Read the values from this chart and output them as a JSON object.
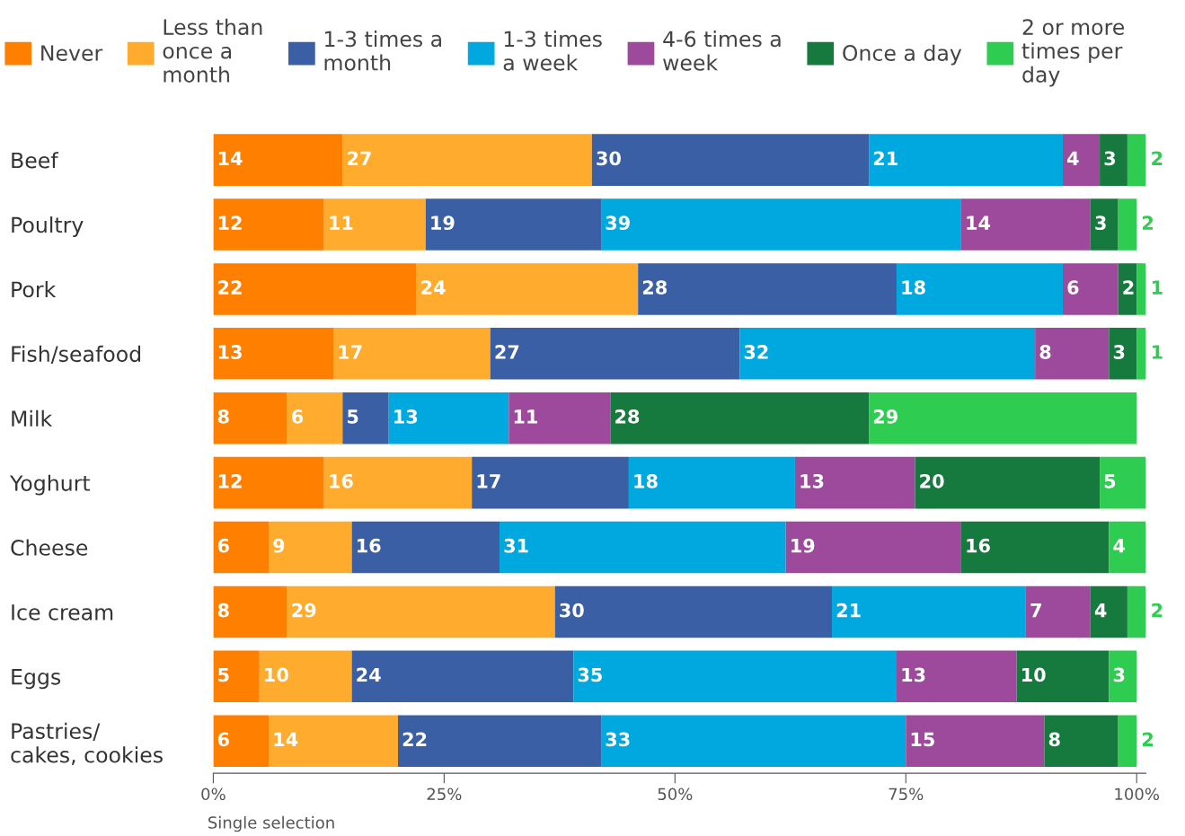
{
  "chart_data": {
    "type": "bar",
    "orientation": "horizontal",
    "stacked": true,
    "data_labels": true,
    "grid": false,
    "legend": "top",
    "categories": [
      "Beef",
      "Poultry",
      "Pork",
      "Fish/seafood",
      "Milk",
      "Yoghurt",
      "Cheese",
      "Ice cream",
      "Eggs",
      "Pastries/\ncakes, cookies"
    ],
    "series": [
      {
        "name": "Never",
        "color": "#ff8000",
        "values": [
          14,
          12,
          22,
          13,
          8,
          12,
          6,
          8,
          5,
          6
        ]
      },
      {
        "name": "Less than\nonce a\nmonth",
        "color": "#ffab2e",
        "values": [
          27,
          11,
          24,
          17,
          6,
          16,
          9,
          29,
          10,
          14
        ]
      },
      {
        "name": "1-3 times a\nmonth",
        "color": "#3a5fa5",
        "values": [
          30,
          19,
          28,
          27,
          5,
          17,
          16,
          30,
          24,
          22
        ]
      },
      {
        "name": "1-3 times\na week",
        "color": "#00a8e0",
        "values": [
          21,
          39,
          18,
          32,
          13,
          18,
          31,
          21,
          35,
          33
        ]
      },
      {
        "name": "4-6 times a\nweek",
        "color": "#9e4a9c",
        "values": [
          4,
          14,
          6,
          8,
          11,
          13,
          19,
          7,
          13,
          15
        ]
      },
      {
        "name": "Once a day",
        "color": "#167a3e",
        "values": [
          3,
          3,
          2,
          3,
          28,
          20,
          16,
          4,
          10,
          8
        ]
      },
      {
        "name": "2 or more\ntimes per\nday",
        "color": "#2ecc50",
        "values": [
          2,
          2,
          1,
          1,
          29,
          5,
          4,
          2,
          3,
          2
        ]
      }
    ],
    "xlim": [
      0,
      101
    ],
    "xticks": [
      {
        "value": 0,
        "label": "0%"
      },
      {
        "value": 25,
        "label": "25%"
      },
      {
        "value": 50,
        "label": "50%"
      },
      {
        "value": 75,
        "label": "75%"
      },
      {
        "value": 100,
        "label": "100%"
      }
    ],
    "annotations": [
      "Single selection"
    ]
  }
}
